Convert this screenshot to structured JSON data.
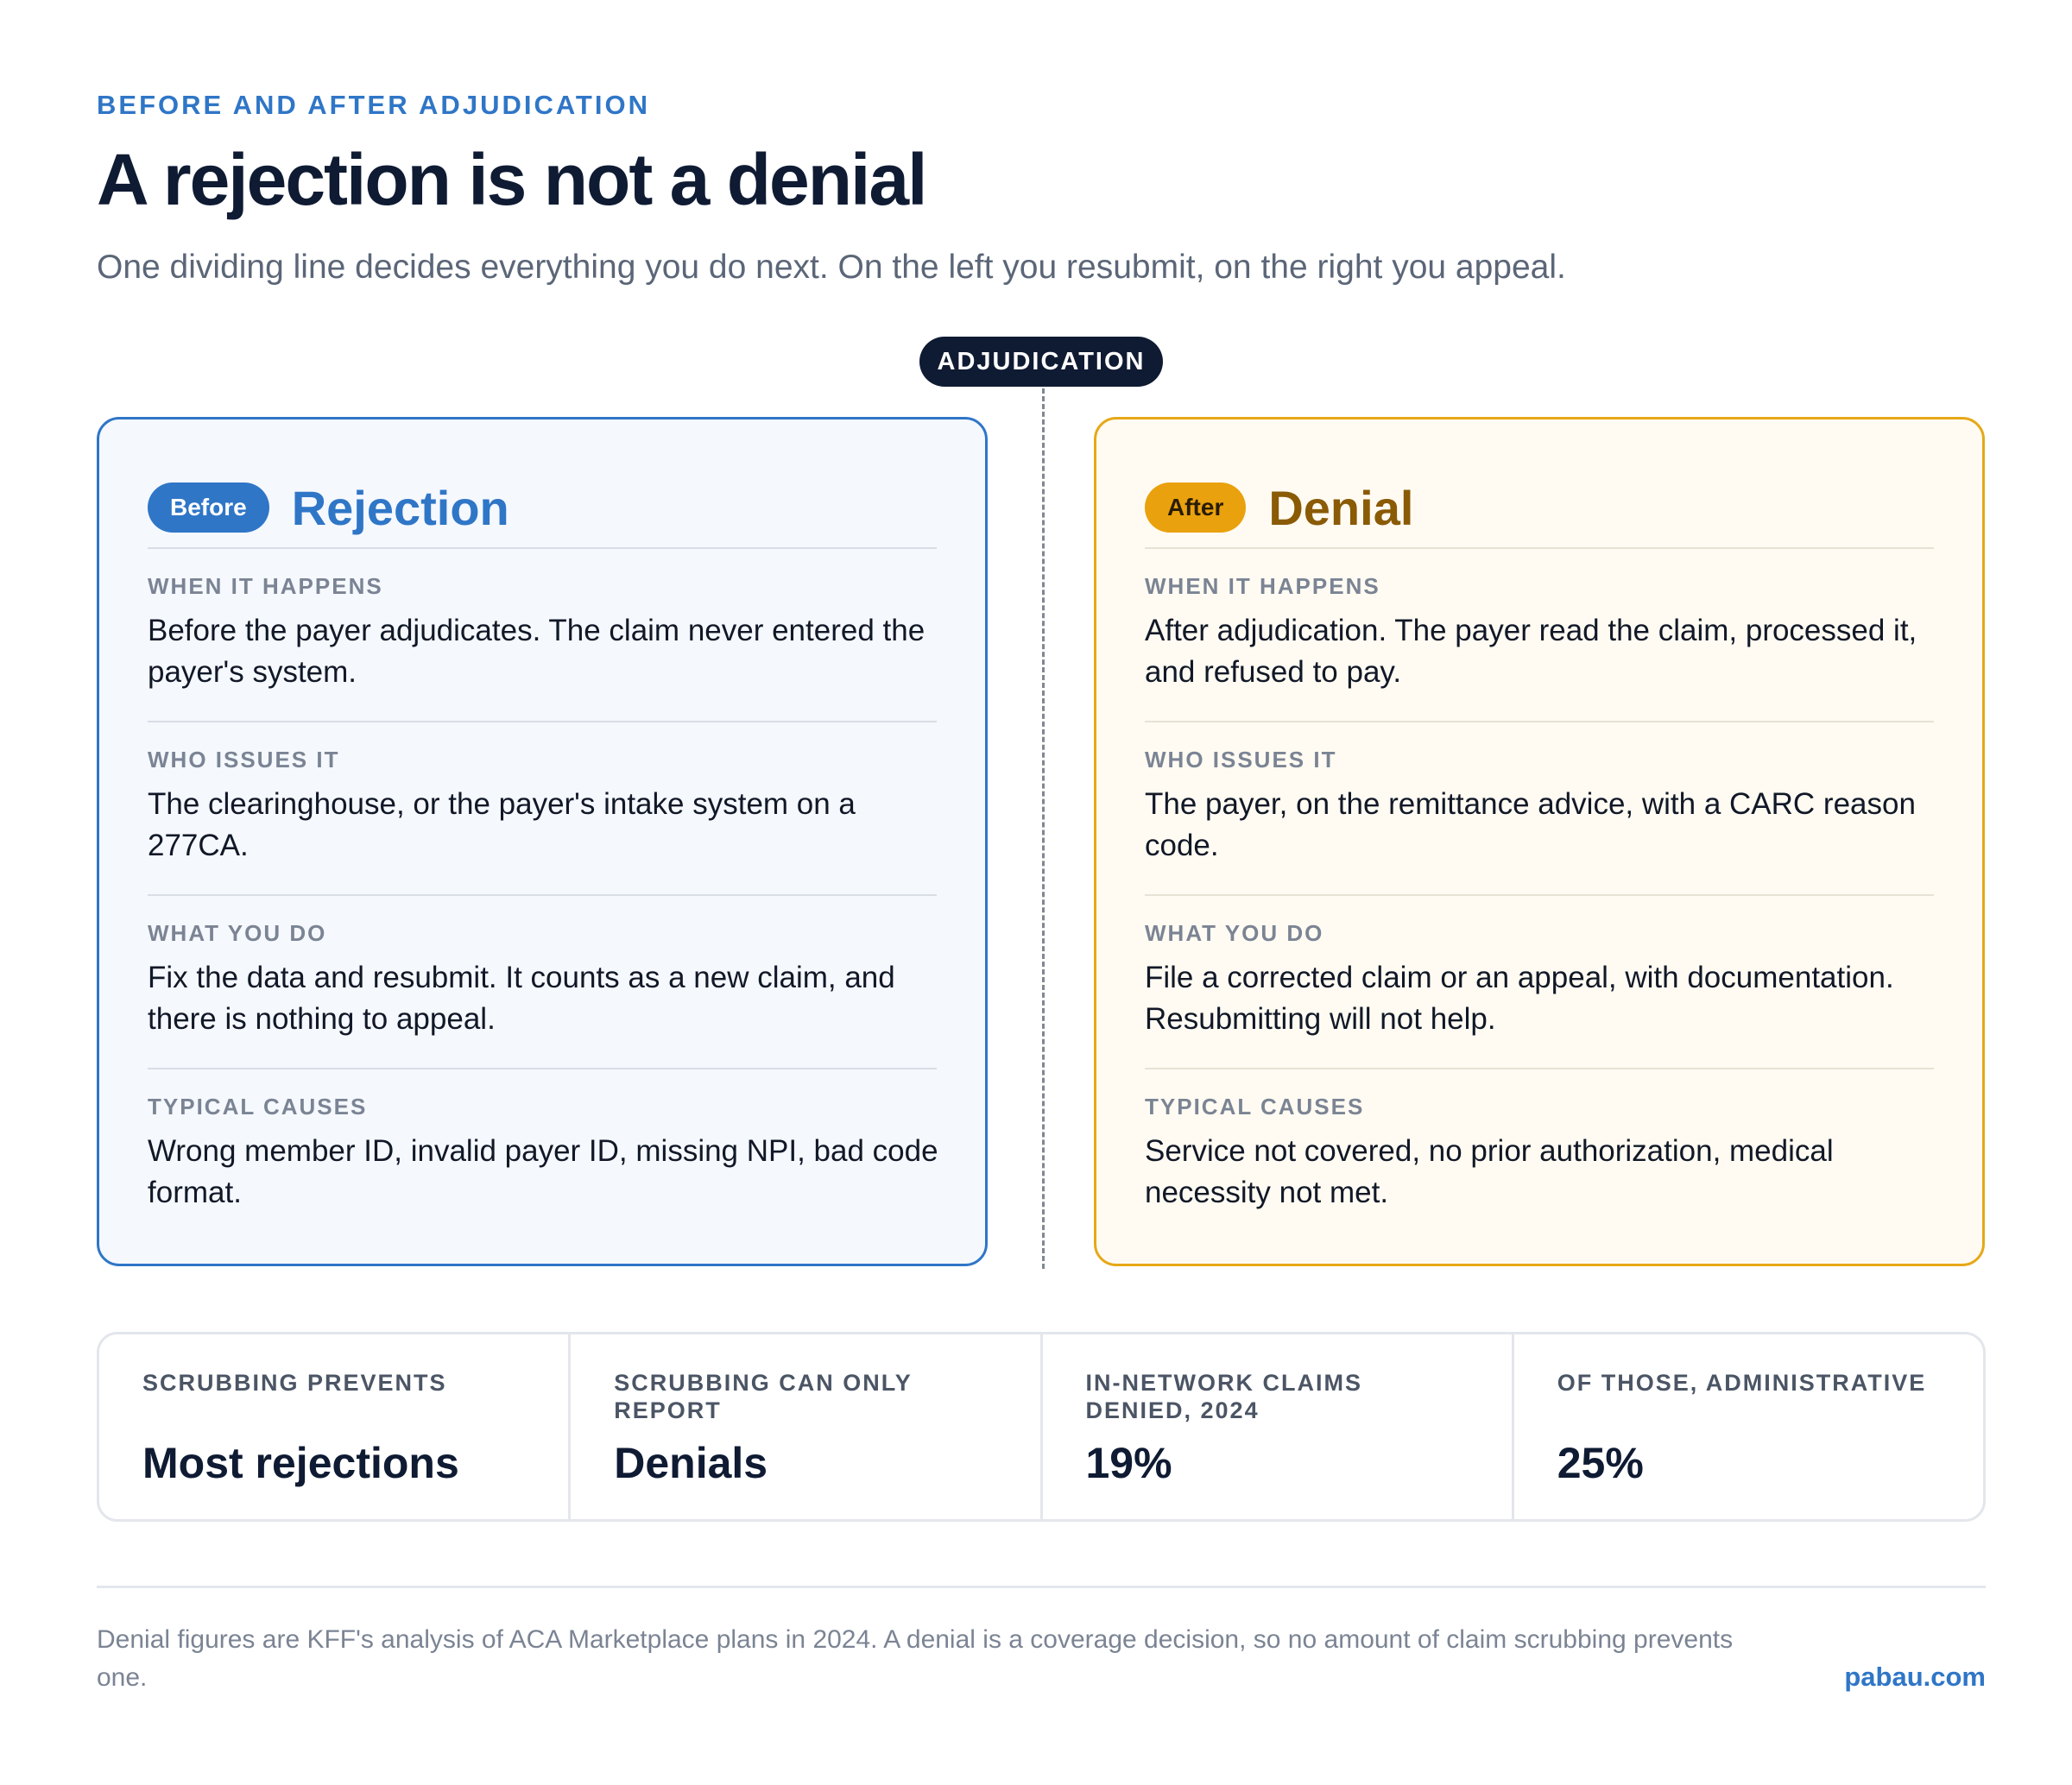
{
  "header": {
    "eyebrow": "BEFORE AND AFTER ADJUDICATION",
    "title": "A rejection is not a denial",
    "subtitle": "One dividing line decides everything you do next. On the left you resubmit, on the right you appeal."
  },
  "divider": {
    "label": "ADJUDICATION"
  },
  "left_panel": {
    "badge": "Before",
    "title": "Rejection",
    "sections": [
      {
        "label": "WHEN IT HAPPENS",
        "text": "Before the payer adjudicates. The claim never entered the payer's system."
      },
      {
        "label": "WHO ISSUES IT",
        "text": "The clearinghouse, or the payer's intake system on a 277CA."
      },
      {
        "label": "WHAT YOU DO",
        "text": "Fix the data and resubmit. It counts as a new claim, and there is nothing to appeal."
      },
      {
        "label": "TYPICAL CAUSES",
        "text": "Wrong member ID, invalid payer ID, missing NPI, bad code format."
      }
    ]
  },
  "right_panel": {
    "badge": "After",
    "title": "Denial",
    "sections": [
      {
        "label": "WHEN IT HAPPENS",
        "text": "After adjudication. The payer read the claim, processed it, and refused to pay."
      },
      {
        "label": "WHO ISSUES IT",
        "text": "The payer, on the remittance advice, with a CARC reason code."
      },
      {
        "label": "WHAT YOU DO",
        "text": "File a corrected claim or an appeal, with documentation. Resubmitting will not help."
      },
      {
        "label": "TYPICAL CAUSES",
        "text": "Service not covered, no prior authorization, medical necessity not met."
      }
    ]
  },
  "stats": [
    {
      "label": "SCRUBBING PREVENTS",
      "value": "Most rejections"
    },
    {
      "label": "SCRUBBING CAN ONLY REPORT",
      "value": "Denials"
    },
    {
      "label": "IN-NETWORK CLAIMS DENIED, 2024",
      "value": "19%"
    },
    {
      "label": "OF THOSE, ADMINISTRATIVE",
      "value": "25%"
    }
  ],
  "footer": {
    "note": "Denial figures are KFF's analysis of ACA Marketplace plans in 2024. A denial is a coverage decision, so no amount of claim scrubbing prevents one.",
    "brand": "pabau.com"
  },
  "colors": {
    "accent_blue": "#2f76c7",
    "accent_amber": "#e9a10e",
    "navy": "#0f1b33"
  }
}
